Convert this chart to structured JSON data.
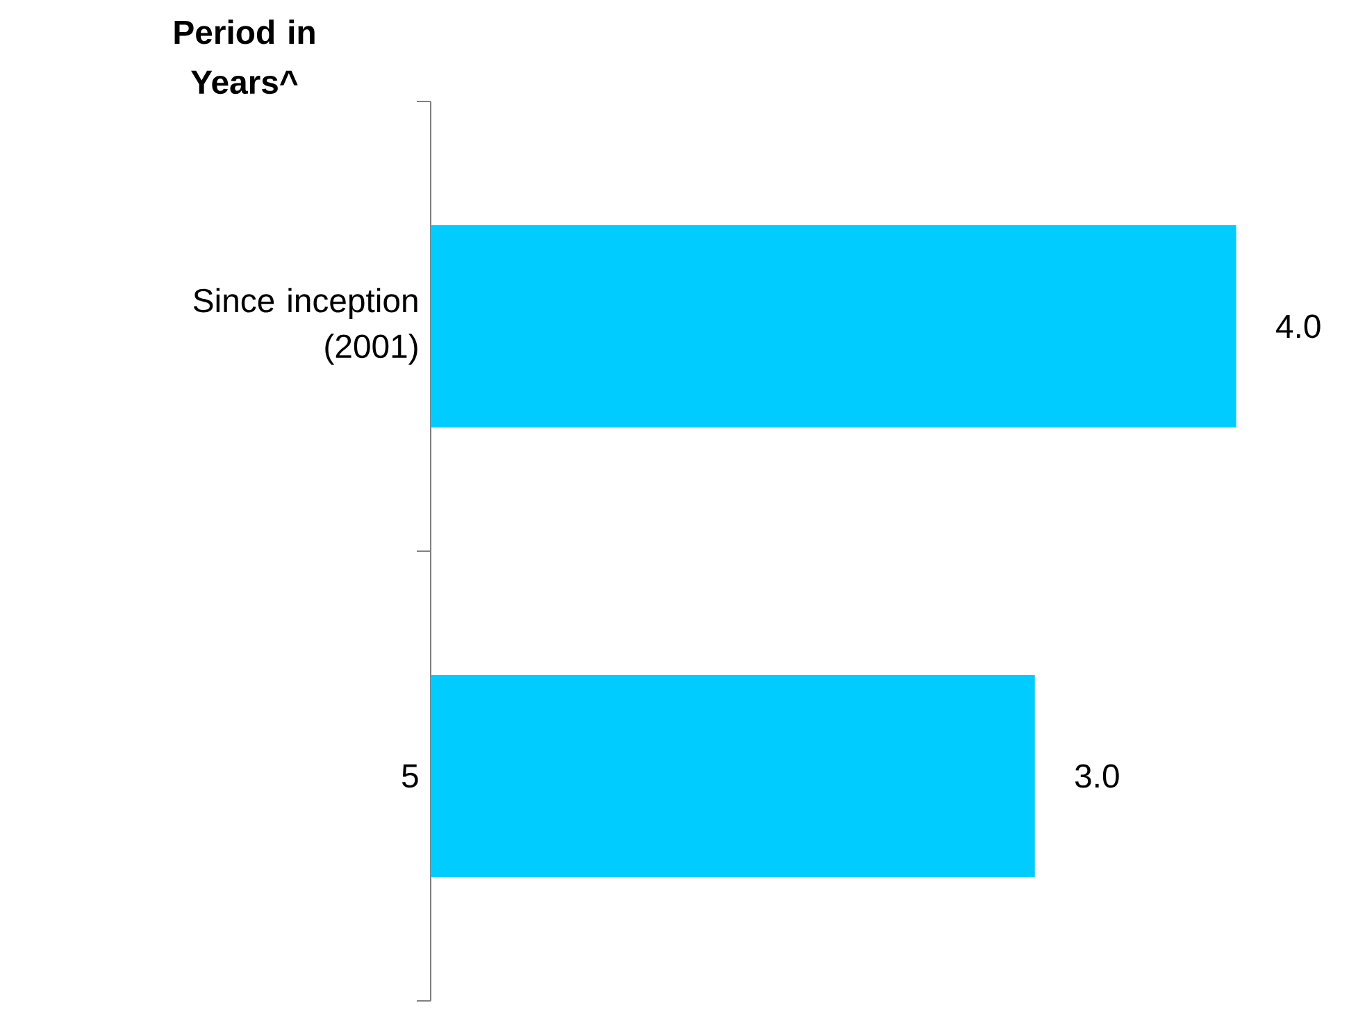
{
  "chart_data": {
    "type": "bar",
    "orientation": "horizontal",
    "ylabel": "Period in Years^",
    "categories": [
      "Since inception (2001)",
      "5"
    ],
    "values": [
      4.0,
      3.0
    ],
    "color": "#00ccff",
    "value_labels": [
      "4.0",
      "3.0"
    ]
  }
}
